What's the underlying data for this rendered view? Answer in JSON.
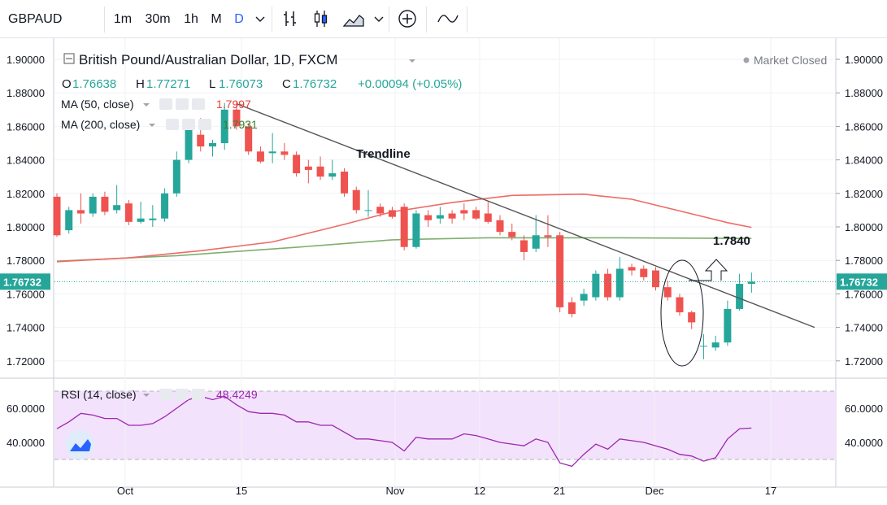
{
  "toolbar": {
    "symbol": "GBPAUD",
    "intervals": [
      "1m",
      "30m",
      "1h",
      "M",
      "D"
    ],
    "active_interval": "D"
  },
  "legend": {
    "title": "British Pound/Australian Dollar, 1D, FXCM",
    "market_status": "Market Closed",
    "ohlc": {
      "o_label": "O",
      "o": "1.76638",
      "h_label": "H",
      "h": "1.77271",
      "l_label": "L",
      "l": "1.76073",
      "c_label": "C",
      "c": "1.76732",
      "change": "+0.00094 (+0.05%)"
    },
    "ma50": {
      "label": "MA (50, close)",
      "value": "1.7997",
      "color": "#e8413a"
    },
    "ma200": {
      "label": "MA (200, close)",
      "value": "1.7931",
      "color": "#3a7d2a"
    },
    "rsi": {
      "label": "RSI (14, close)",
      "value": "48.4249",
      "color": "#9c27b0"
    }
  },
  "annotations": {
    "trendline_label": "Trendline",
    "target_label": "1.7840"
  },
  "price_axis": {
    "ticks": [
      "1.90000",
      "1.88000",
      "1.86000",
      "1.84000",
      "1.82000",
      "1.80000",
      "1.78000",
      "1.76000",
      "1.74000",
      "1.72000"
    ],
    "last_price": "1.76732"
  },
  "rsi_axis": {
    "ticks": [
      "60.0000",
      "40.0000"
    ]
  },
  "time_axis": {
    "ticks": [
      "Oct",
      "15",
      "Nov",
      "12",
      "21",
      "Dec",
      "17"
    ]
  },
  "colors": {
    "up": "#26a69a",
    "down": "#ef5350",
    "trendline": "#555555",
    "rsi_band": "#f3e2fb",
    "last_price": "#26a69a"
  },
  "chart_data": {
    "type": "candlestick",
    "symbol": "GBPAUD",
    "timeframe": "1D",
    "ylim": [
      1.71,
      1.905
    ],
    "rsi_ylim": [
      23,
      73
    ],
    "candles": [
      {
        "x": 0,
        "o": 1.818,
        "h": 1.82,
        "l": 1.794,
        "c": 1.795
      },
      {
        "x": 1,
        "o": 1.798,
        "h": 1.812,
        "l": 1.796,
        "c": 1.81
      },
      {
        "x": 2,
        "o": 1.81,
        "h": 1.82,
        "l": 1.802,
        "c": 1.808
      },
      {
        "x": 3,
        "o": 1.808,
        "h": 1.82,
        "l": 1.806,
        "c": 1.818
      },
      {
        "x": 4,
        "o": 1.818,
        "h": 1.821,
        "l": 1.807,
        "c": 1.809
      },
      {
        "x": 5,
        "o": 1.81,
        "h": 1.825,
        "l": 1.808,
        "c": 1.813
      },
      {
        "x": 6,
        "o": 1.814,
        "h": 1.816,
        "l": 1.801,
        "c": 1.803
      },
      {
        "x": 7,
        "o": 1.803,
        "h": 1.815,
        "l": 1.802,
        "c": 1.805
      },
      {
        "x": 8,
        "o": 1.804,
        "h": 1.813,
        "l": 1.8,
        "c": 1.805
      },
      {
        "x": 9,
        "o": 1.805,
        "h": 1.823,
        "l": 1.803,
        "c": 1.82
      },
      {
        "x": 10,
        "o": 1.82,
        "h": 1.845,
        "l": 1.818,
        "c": 1.84
      },
      {
        "x": 11,
        "o": 1.84,
        "h": 1.863,
        "l": 1.838,
        "c": 1.861
      },
      {
        "x": 12,
        "o": 1.855,
        "h": 1.865,
        "l": 1.845,
        "c": 1.848
      },
      {
        "x": 13,
        "o": 1.848,
        "h": 1.852,
        "l": 1.842,
        "c": 1.85
      },
      {
        "x": 14,
        "o": 1.85,
        "h": 1.874,
        "l": 1.846,
        "c": 1.87
      },
      {
        "x": 15,
        "o": 1.87,
        "h": 1.875,
        "l": 1.858,
        "c": 1.86
      },
      {
        "x": 16,
        "o": 1.86,
        "h": 1.862,
        "l": 1.843,
        "c": 1.845
      },
      {
        "x": 17,
        "o": 1.845,
        "h": 1.848,
        "l": 1.838,
        "c": 1.839
      },
      {
        "x": 18,
        "o": 1.844,
        "h": 1.856,
        "l": 1.838,
        "c": 1.845
      },
      {
        "x": 19,
        "o": 1.845,
        "h": 1.85,
        "l": 1.84,
        "c": 1.843
      },
      {
        "x": 20,
        "o": 1.843,
        "h": 1.845,
        "l": 1.83,
        "c": 1.832
      },
      {
        "x": 21,
        "o": 1.836,
        "h": 1.84,
        "l": 1.826,
        "c": 1.834
      },
      {
        "x": 22,
        "o": 1.836,
        "h": 1.842,
        "l": 1.828,
        "c": 1.83
      },
      {
        "x": 23,
        "o": 1.83,
        "h": 1.84,
        "l": 1.828,
        "c": 1.832
      },
      {
        "x": 24,
        "o": 1.833,
        "h": 1.835,
        "l": 1.818,
        "c": 1.82
      },
      {
        "x": 25,
        "o": 1.822,
        "h": 1.824,
        "l": 1.808,
        "c": 1.81
      },
      {
        "x": 26,
        "o": 1.81,
        "h": 1.822,
        "l": 1.806,
        "c": 1.81
      },
      {
        "x": 27,
        "o": 1.812,
        "h": 1.814,
        "l": 1.806,
        "c": 1.808
      },
      {
        "x": 28,
        "o": 1.81,
        "h": 1.812,
        "l": 1.805,
        "c": 1.806
      },
      {
        "x": 29,
        "o": 1.812,
        "h": 1.814,
        "l": 1.786,
        "c": 1.788
      },
      {
        "x": 30,
        "o": 1.788,
        "h": 1.81,
        "l": 1.787,
        "c": 1.808
      },
      {
        "x": 31,
        "o": 1.807,
        "h": 1.81,
        "l": 1.8,
        "c": 1.804
      },
      {
        "x": 32,
        "o": 1.805,
        "h": 1.812,
        "l": 1.802,
        "c": 1.807
      },
      {
        "x": 33,
        "o": 1.808,
        "h": 1.81,
        "l": 1.802,
        "c": 1.805
      },
      {
        "x": 34,
        "o": 1.81,
        "h": 1.814,
        "l": 1.804,
        "c": 1.808
      },
      {
        "x": 35,
        "o": 1.81,
        "h": 1.812,
        "l": 1.804,
        "c": 1.805
      },
      {
        "x": 36,
        "o": 1.808,
        "h": 1.815,
        "l": 1.802,
        "c": 1.803
      },
      {
        "x": 37,
        "o": 1.804,
        "h": 1.807,
        "l": 1.795,
        "c": 1.797
      },
      {
        "x": 38,
        "o": 1.797,
        "h": 1.802,
        "l": 1.792,
        "c": 1.794
      },
      {
        "x": 39,
        "o": 1.792,
        "h": 1.795,
        "l": 1.78,
        "c": 1.785
      },
      {
        "x": 40,
        "o": 1.787,
        "h": 1.807,
        "l": 1.785,
        "c": 1.795
      },
      {
        "x": 41,
        "o": 1.795,
        "h": 1.807,
        "l": 1.788,
        "c": 1.794
      },
      {
        "x": 42,
        "o": 1.795,
        "h": 1.797,
        "l": 1.749,
        "c": 1.752
      },
      {
        "x": 43,
        "o": 1.755,
        "h": 1.758,
        "l": 1.746,
        "c": 1.748
      },
      {
        "x": 44,
        "o": 1.756,
        "h": 1.763,
        "l": 1.753,
        "c": 1.76
      },
      {
        "x": 45,
        "o": 1.758,
        "h": 1.774,
        "l": 1.756,
        "c": 1.772
      },
      {
        "x": 46,
        "o": 1.772,
        "h": 1.775,
        "l": 1.756,
        "c": 1.758
      },
      {
        "x": 47,
        "o": 1.758,
        "h": 1.782,
        "l": 1.756,
        "c": 1.775
      },
      {
        "x": 48,
        "o": 1.776,
        "h": 1.778,
        "l": 1.771,
        "c": 1.774
      },
      {
        "x": 49,
        "o": 1.775,
        "h": 1.777,
        "l": 1.768,
        "c": 1.77
      },
      {
        "x": 50,
        "o": 1.774,
        "h": 1.776,
        "l": 1.762,
        "c": 1.764
      },
      {
        "x": 51,
        "o": 1.764,
        "h": 1.768,
        "l": 1.756,
        "c": 1.758
      },
      {
        "x": 52,
        "o": 1.758,
        "h": 1.76,
        "l": 1.747,
        "c": 1.749
      },
      {
        "x": 53,
        "o": 1.749,
        "h": 1.75,
        "l": 1.739,
        "c": 1.743
      },
      {
        "x": 54,
        "o": 1.729,
        "h": 1.736,
        "l": 1.721,
        "c": 1.729
      },
      {
        "x": 55,
        "o": 1.728,
        "h": 1.735,
        "l": 1.726,
        "c": 1.731
      },
      {
        "x": 56,
        "o": 1.731,
        "h": 1.756,
        "l": 1.729,
        "c": 1.751
      },
      {
        "x": 57,
        "o": 1.751,
        "h": 1.772,
        "l": 1.75,
        "c": 1.766
      },
      {
        "x": 58,
        "o": 1.766,
        "h": 1.7727,
        "l": 1.7607,
        "c": 1.7673
      }
    ],
    "ma50": [
      [
        0,
        1.7792
      ],
      [
        6,
        1.7815
      ],
      [
        12,
        1.7858
      ],
      [
        18,
        1.791
      ],
      [
        24,
        1.8015
      ],
      [
        28,
        1.809
      ],
      [
        33,
        1.8145
      ],
      [
        38,
        1.8188
      ],
      [
        44,
        1.8195
      ],
      [
        48,
        1.8165
      ],
      [
        52,
        1.8095
      ],
      [
        56,
        1.8025
      ],
      [
        58,
        1.7997
      ]
    ],
    "ma200": [
      [
        0,
        1.7795
      ],
      [
        10,
        1.7828
      ],
      [
        20,
        1.7878
      ],
      [
        28,
        1.7923
      ],
      [
        36,
        1.7935
      ],
      [
        46,
        1.7935
      ],
      [
        58,
        1.7931
      ]
    ],
    "trendline": [
      [
        15,
        1.8735
      ],
      [
        63,
        1.74
      ]
    ],
    "target_level": 1.784,
    "rsi": [
      [
        0,
        48
      ],
      [
        1,
        52
      ],
      [
        2,
        57
      ],
      [
        3,
        56
      ],
      [
        4,
        54
      ],
      [
        5,
        54
      ],
      [
        6,
        50
      ],
      [
        7,
        50
      ],
      [
        8,
        51
      ],
      [
        9,
        55
      ],
      [
        10,
        60
      ],
      [
        11,
        65
      ],
      [
        12,
        67
      ],
      [
        13,
        65
      ],
      [
        14,
        67
      ],
      [
        15,
        62
      ],
      [
        16,
        58
      ],
      [
        17,
        57
      ],
      [
        18,
        57
      ],
      [
        19,
        56
      ],
      [
        20,
        52
      ],
      [
        21,
        52
      ],
      [
        22,
        50
      ],
      [
        23,
        50
      ],
      [
        24,
        46
      ],
      [
        25,
        42
      ],
      [
        26,
        42
      ],
      [
        27,
        41
      ],
      [
        28,
        40
      ],
      [
        29,
        35
      ],
      [
        30,
        43
      ],
      [
        31,
        42
      ],
      [
        32,
        42
      ],
      [
        33,
        42
      ],
      [
        34,
        45
      ],
      [
        35,
        44
      ],
      [
        36,
        42
      ],
      [
        37,
        40
      ],
      [
        38,
        39
      ],
      [
        39,
        38
      ],
      [
        40,
        42
      ],
      [
        41,
        40
      ],
      [
        42,
        28
      ],
      [
        43,
        26
      ],
      [
        44,
        33
      ],
      [
        45,
        39
      ],
      [
        46,
        36
      ],
      [
        47,
        42
      ],
      [
        48,
        41
      ],
      [
        49,
        40
      ],
      [
        50,
        38
      ],
      [
        51,
        36
      ],
      [
        52,
        33
      ],
      [
        53,
        32
      ],
      [
        54,
        29
      ],
      [
        55,
        31
      ],
      [
        56,
        42
      ],
      [
        57,
        48
      ],
      [
        58,
        48.4
      ]
    ]
  }
}
